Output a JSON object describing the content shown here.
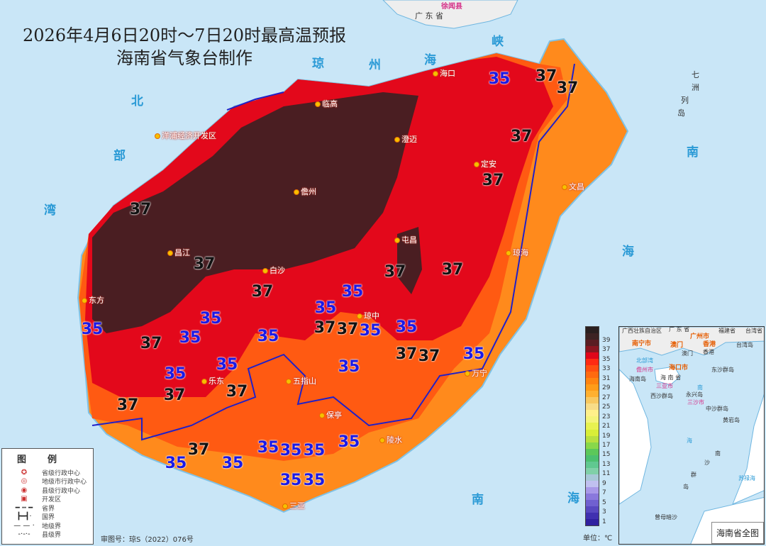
{
  "title": {
    "line1": "2026年4月6日20时～7日20时最高温预报",
    "line2": "海南省气象台制作"
  },
  "sea_labels": {
    "strait": [
      "琼",
      "州",
      "海",
      "峡"
    ],
    "gulf": [
      "北",
      "部",
      "湾"
    ],
    "south_sea_east": [
      "南",
      "海"
    ],
    "south_sea_south": [
      "南",
      "海"
    ],
    "islands": [
      "七",
      "洲",
      "列",
      "岛"
    ]
  },
  "mainland": {
    "province": "广 东 省",
    "county": "徐闻县"
  },
  "cities": [
    "海口",
    "临高",
    "澄迈",
    "定安",
    "文昌",
    "洋浦经济开发区",
    "儋州",
    "屯昌",
    "琼海",
    "昌江",
    "白沙",
    "琼中",
    "东方",
    "乐东",
    "五指山",
    "万宁",
    "保亭",
    "陵水",
    "三亚"
  ],
  "contour_labels": [
    "37",
    "37",
    "37",
    "37",
    "37",
    "37",
    "37",
    "37",
    "37",
    "37",
    "37",
    "37",
    "37",
    "37",
    "37",
    "37",
    "37",
    "37",
    "35",
    "35",
    "35",
    "35",
    "35",
    "35",
    "35",
    "35",
    "35",
    "35",
    "35",
    "35",
    "35",
    "35",
    "35",
    "35",
    "35",
    "35",
    "35",
    "35",
    "35"
  ],
  "legend": {
    "title": "图例",
    "items": [
      {
        "icon": "provincial-capital-icon",
        "label": "省级行政中心"
      },
      {
        "icon": "prefecture-center-icon",
        "label": "地级市行政中心"
      },
      {
        "icon": "county-center-icon",
        "label": "县级行政中心"
      },
      {
        "icon": "development-zone-icon",
        "label": "开发区"
      },
      {
        "icon": "provincial-boundary-line",
        "label": "省界"
      },
      {
        "icon": "national-boundary-line",
        "label": "国界"
      },
      {
        "icon": "prefecture-boundary-line",
        "label": "地级界"
      },
      {
        "icon": "county-boundary-line",
        "label": "县级界"
      }
    ]
  },
  "review_number": "审图号：琼S（2022）076号",
  "color_scale": {
    "ticks": [
      "39",
      "37",
      "35",
      "33",
      "31",
      "29",
      "27",
      "25",
      "23",
      "21",
      "19",
      "17",
      "15",
      "13",
      "11",
      "9",
      "7",
      "5",
      "3",
      "1"
    ],
    "unit": "单位：℃",
    "colors": [
      "#2a1f1f",
      "#3d2323",
      "#5a1d22",
      "#8a1620",
      "#e0061a",
      "#ff2a12",
      "#ff4e10",
      "#ff6a10",
      "#ff8410",
      "#ff9c18",
      "#ffb030",
      "#f8c860",
      "#f8dc88",
      "#fff08a",
      "#f4f47a",
      "#e8f250",
      "#d8ee38",
      "#b8e040",
      "#88d84a",
      "#5cc85a",
      "#4cc070",
      "#60c890",
      "#80d0a8",
      "#a8c8d8",
      "#c0c0f0",
      "#a898e8",
      "#8a78dc",
      "#7060d0",
      "#5848c0",
      "#4030b0",
      "#3020a0"
    ]
  },
  "inset": {
    "title": "海南省全图",
    "labels": [
      "广西壮族自治区",
      "广 东 省",
      "福建省",
      "台湾省",
      "台湾岛",
      "香港",
      "澳门",
      "北部湾",
      "海 南 省",
      "海南岛",
      "东沙群岛",
      "西沙群岛",
      "永兴岛",
      "中沙群岛",
      "黄岩岛",
      "南",
      "海",
      "南",
      "沙",
      "群",
      "岛",
      "苏禄海",
      "曾母暗沙"
    ],
    "cities": [
      "南宁市",
      "广州市",
      "澳门",
      "香港",
      "海口市",
      "儋州市",
      "三亚市",
      "三沙市"
    ]
  }
}
